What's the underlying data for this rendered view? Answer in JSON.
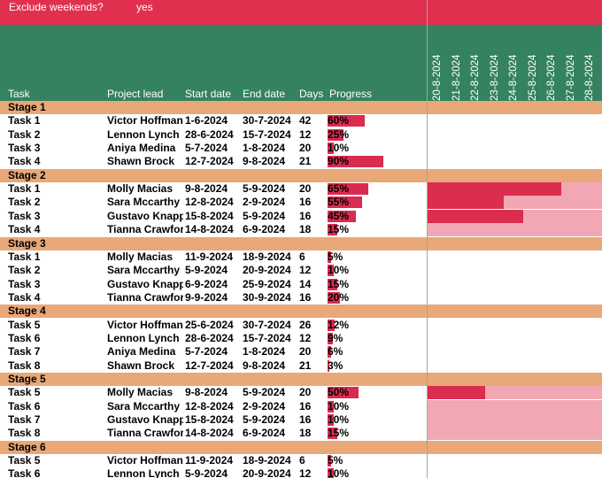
{
  "colors": {
    "top_bar": "#e1304f",
    "header": "#34825f",
    "stage_band": "#e9a878",
    "progress": "#d92b4f",
    "gantt_active": "#dc2d4f",
    "gantt_background": "#f2a7b4"
  },
  "settings": {
    "exclude_weekends_label": "Exclude weekends?",
    "exclude_weekends_value": "yes"
  },
  "columns": {
    "task": "Task",
    "project_lead": "Project lead",
    "start_date": "Start date",
    "end_date": "End date",
    "days": "Days",
    "progress": "Progress"
  },
  "timeline_dates": [
    "20-8-2024",
    "21-8-2024",
    "22-8-2024",
    "23-8-2024",
    "24-8-2024",
    "25-8-2024",
    "26-8-2024",
    "27-8-2024",
    "28-8-2024"
  ],
  "stages": [
    {
      "name": "Stage 1",
      "tasks": [
        {
          "task": "Task 1",
          "lead": "Victor Hoffman",
          "start": "1-6-2024",
          "end": "30-7-2024",
          "days": "42",
          "progress": "60%",
          "progress_value": 0.6
        },
        {
          "task": "Task 2",
          "lead": "Lennon Lynch",
          "start": "28-6-2024",
          "end": "15-7-2024",
          "days": "12",
          "progress": "25%",
          "progress_value": 0.25
        },
        {
          "task": "Task 3",
          "lead": "Aniya Medina",
          "start": "5-7-2024",
          "end": "1-8-2024",
          "days": "20",
          "progress": "10%",
          "progress_value": 0.1
        },
        {
          "task": "Task 4",
          "lead": "Shawn Brock",
          "start": "12-7-2024",
          "end": "9-8-2024",
          "days": "21",
          "progress": "90%",
          "progress_value": 0.9
        }
      ]
    },
    {
      "name": "Stage 2",
      "tasks": [
        {
          "task": "Task 1",
          "lead": "Molly Macias",
          "start": "9-8-2024",
          "end": "5-9-2024",
          "days": "20",
          "progress": "65%",
          "progress_value": 0.65,
          "gantt": {
            "active_days": 7,
            "in_window": true
          }
        },
        {
          "task": "Task 2",
          "lead": "Sara Mccarthy",
          "start": "12-8-2024",
          "end": "2-9-2024",
          "days": "16",
          "progress": "55%",
          "progress_value": 0.55,
          "gantt": {
            "active_days": 4,
            "in_window": true
          }
        },
        {
          "task": "Task 3",
          "lead": "Gustavo Knapp",
          "start": "15-8-2024",
          "end": "5-9-2024",
          "days": "16",
          "progress": "45%",
          "progress_value": 0.45,
          "gantt": {
            "active_days": 5,
            "in_window": true
          }
        },
        {
          "task": "Task 4",
          "lead": "Tianna Crawford",
          "start": "14-8-2024",
          "end": "6-9-2024",
          "days": "18",
          "progress": "15%",
          "progress_value": 0.15,
          "gantt": {
            "active_days": 0,
            "in_window": true
          }
        }
      ]
    },
    {
      "name": "Stage 3",
      "tasks": [
        {
          "task": "Task 1",
          "lead": "Molly Macias",
          "start": "11-9-2024",
          "end": "18-9-2024",
          "days": "6",
          "progress": "5%",
          "progress_value": 0.05
        },
        {
          "task": "Task 2",
          "lead": "Sara Mccarthy",
          "start": "5-9-2024",
          "end": "20-9-2024",
          "days": "12",
          "progress": "10%",
          "progress_value": 0.1
        },
        {
          "task": "Task 3",
          "lead": "Gustavo Knapp",
          "start": "6-9-2024",
          "end": "25-9-2024",
          "days": "14",
          "progress": "15%",
          "progress_value": 0.15
        },
        {
          "task": "Task 4",
          "lead": "Tianna Crawford",
          "start": "9-9-2024",
          "end": "30-9-2024",
          "days": "16",
          "progress": "20%",
          "progress_value": 0.2
        }
      ]
    },
    {
      "name": "Stage 4",
      "tasks": [
        {
          "task": "Task 5",
          "lead": "Victor Hoffman",
          "start": "25-6-2024",
          "end": "30-7-2024",
          "days": "26",
          "progress": "12%",
          "progress_value": 0.12
        },
        {
          "task": "Task 6",
          "lead": "Lennon Lynch",
          "start": "28-6-2024",
          "end": "15-7-2024",
          "days": "12",
          "progress": "9%",
          "progress_value": 0.09
        },
        {
          "task": "Task 7",
          "lead": "Aniya Medina",
          "start": "5-7-2024",
          "end": "1-8-2024",
          "days": "20",
          "progress": "6%",
          "progress_value": 0.06
        },
        {
          "task": "Task 8",
          "lead": "Shawn Brock",
          "start": "12-7-2024",
          "end": "9-8-2024",
          "days": "21",
          "progress": "3%",
          "progress_value": 0.03
        }
      ]
    },
    {
      "name": "Stage 5",
      "tasks": [
        {
          "task": "Task 5",
          "lead": "Molly Macias",
          "start": "9-8-2024",
          "end": "5-9-2024",
          "days": "20",
          "progress": "50%",
          "progress_value": 0.5,
          "gantt": {
            "active_days": 3,
            "in_window": true
          }
        },
        {
          "task": "Task 6",
          "lead": "Sara Mccarthy",
          "start": "12-8-2024",
          "end": "2-9-2024",
          "days": "16",
          "progress": "10%",
          "progress_value": 0.1,
          "gantt": {
            "active_days": 0,
            "in_window": true
          }
        },
        {
          "task": "Task 7",
          "lead": "Gustavo Knapp",
          "start": "15-8-2024",
          "end": "5-9-2024",
          "days": "16",
          "progress": "10%",
          "progress_value": 0.1,
          "gantt": {
            "active_days": 0,
            "in_window": true
          }
        },
        {
          "task": "Task 8",
          "lead": "Tianna Crawford",
          "start": "14-8-2024",
          "end": "6-9-2024",
          "days": "18",
          "progress": "15%",
          "progress_value": 0.15,
          "gantt": {
            "active_days": 0,
            "in_window": true
          }
        }
      ]
    },
    {
      "name": "Stage 6",
      "tasks": [
        {
          "task": "Task 5",
          "lead": "Victor Hoffman",
          "start": "11-9-2024",
          "end": "18-9-2024",
          "days": "6",
          "progress": "5%",
          "progress_value": 0.05
        },
        {
          "task": "Task 6",
          "lead": "Lennon Lynch",
          "start": "5-9-2024",
          "end": "20-9-2024",
          "days": "12",
          "progress": "10%",
          "progress_value": 0.1
        }
      ]
    }
  ]
}
